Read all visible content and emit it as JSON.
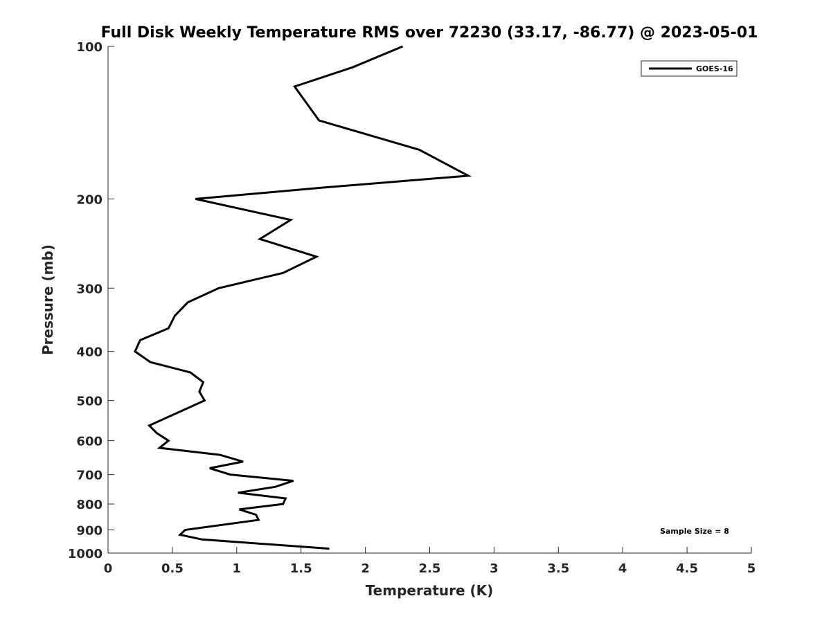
{
  "chart_data": {
    "type": "line",
    "title": "Full Disk Weekly Temperature RMS over 72230 (33.17, -86.77) @ 2023-05-01",
    "xlabel": "Temperature (K)",
    "ylabel": "Pressure (mb)",
    "xlim": [
      0,
      5
    ],
    "ylim": [
      100,
      1000
    ],
    "yscale": "log",
    "yreversed": true,
    "grid": false,
    "legend_placement": "top-right",
    "xticks": [
      "0",
      "0.5",
      "1",
      "1.5",
      "2",
      "2.5",
      "3",
      "3.5",
      "4",
      "4.5",
      "5"
    ],
    "xtick_values": [
      0,
      0.5,
      1,
      1.5,
      2,
      2.5,
      3,
      3.5,
      4,
      4.5,
      5
    ],
    "yticks": [
      "100",
      "200",
      "300",
      "400",
      "500",
      "600",
      "700",
      "800",
      "900",
      "1000"
    ],
    "ytick_values": [
      100,
      200,
      300,
      400,
      500,
      600,
      700,
      800,
      900,
      1000
    ],
    "series": [
      {
        "name": "GOES-16",
        "color": "#000000",
        "pressure": [
          100,
          110,
          120,
          140,
          160,
          180,
          190,
          200,
          220,
          240,
          260,
          280,
          300,
          320,
          340,
          360,
          380,
          400,
          420,
          440,
          460,
          480,
          500,
          560,
          580,
          600,
          620,
          640,
          660,
          680,
          700,
          720,
          740,
          760,
          780,
          800,
          820,
          840,
          860,
          900,
          920,
          940,
          980
        ],
        "temperature": [
          2.29,
          1.9,
          1.45,
          1.64,
          2.42,
          2.8,
          1.67,
          0.68,
          1.42,
          1.18,
          1.62,
          1.36,
          0.86,
          0.62,
          0.52,
          0.47,
          0.25,
          0.21,
          0.33,
          0.64,
          0.74,
          0.71,
          0.75,
          0.32,
          0.38,
          0.47,
          0.4,
          0.87,
          1.05,
          0.79,
          0.95,
          1.44,
          1.3,
          1.01,
          1.38,
          1.36,
          1.02,
          1.15,
          1.17,
          0.6,
          0.56,
          0.73,
          1.72
        ]
      }
    ],
    "annotation": "Sample Size = 8"
  }
}
